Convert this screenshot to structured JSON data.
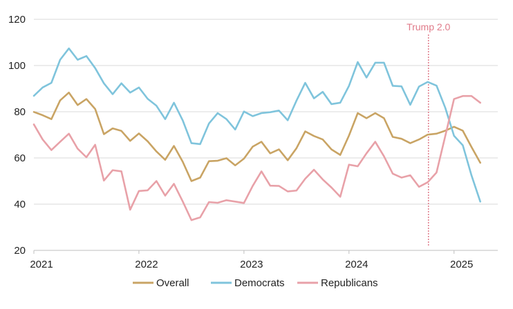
{
  "chart_data": {
    "type": "line",
    "title": "",
    "xlabel": "",
    "ylabel": "",
    "x_start": "2021-01",
    "x_tick_labels": [
      "2021",
      "2022",
      "2023",
      "2024",
      "2025"
    ],
    "ylim": [
      20,
      120
    ],
    "y_ticks": [
      20,
      40,
      60,
      80,
      100,
      120
    ],
    "grid": true,
    "legend_position": "bottom-center",
    "annotation": {
      "label": "Trump 2.0",
      "x": "2024-10",
      "color": "#e07b8a"
    },
    "series": [
      {
        "name": "Overall",
        "color": "#c9a464",
        "values": [
          79.9,
          78.5,
          76.8,
          84.9,
          88.3,
          82.9,
          85.5,
          81.2,
          70.3,
          72.8,
          71.7,
          67.4,
          70.6,
          67.2,
          62.8,
          59.2,
          65.2,
          58.4,
          50.0,
          51.5,
          58.6,
          58.8,
          59.9,
          56.8,
          59.7,
          64.9,
          67.0,
          62.0,
          63.7,
          59.0,
          64.2,
          71.5,
          69.5,
          68.0,
          63.7,
          61.3,
          69.7,
          79.4,
          77.2,
          79.4,
          77.2,
          69.1,
          68.3,
          66.4,
          68.0,
          70.1,
          70.5,
          71.8,
          73.5,
          71.8,
          64.7,
          57.9
        ]
      },
      {
        "name": "Democrats",
        "color": "#7fc4dc",
        "values": [
          86.9,
          90.5,
          92.5,
          102.5,
          107.4,
          102.5,
          104.1,
          98.9,
          92.3,
          87.6,
          92.3,
          88.3,
          90.5,
          85.6,
          82.6,
          76.8,
          83.9,
          76.3,
          66.4,
          66.0,
          74.9,
          79.4,
          76.8,
          72.3,
          80.1,
          78.1,
          79.4,
          79.8,
          80.5,
          76.3,
          84.8,
          92.5,
          85.8,
          88.6,
          83.3,
          83.9,
          91.2,
          101.5,
          94.8,
          101.2,
          101.2,
          91.2,
          91.0,
          83.0,
          90.9,
          92.9,
          91.3,
          81.7,
          69.6,
          65.5,
          52.4,
          41.1
        ]
      },
      {
        "name": "Republicans",
        "color": "#e8a1a8",
        "values": [
          74.5,
          68.0,
          63.4,
          67.0,
          70.5,
          64.0,
          60.3,
          65.7,
          50.2,
          54.7,
          54.2,
          37.6,
          45.7,
          46.0,
          50.0,
          43.7,
          48.8,
          41.2,
          33.1,
          34.3,
          40.9,
          40.6,
          41.7,
          41.1,
          40.5,
          47.9,
          54.2,
          48.0,
          47.9,
          45.5,
          45.9,
          51.0,
          54.9,
          50.7,
          47.2,
          43.2,
          57.1,
          56.4,
          62.0,
          67.0,
          60.7,
          53.2,
          51.5,
          52.5,
          47.5,
          49.5,
          53.7,
          69.5,
          85.5,
          86.8,
          86.8,
          83.9
        ]
      }
    ]
  }
}
